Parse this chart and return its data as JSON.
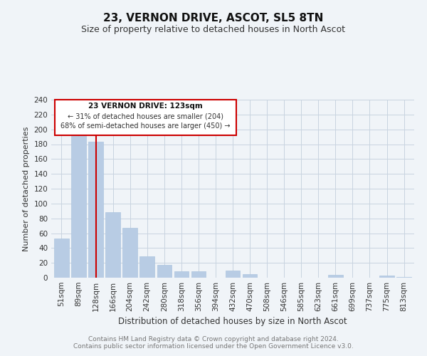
{
  "title": "23, VERNON DRIVE, ASCOT, SL5 8TN",
  "subtitle": "Size of property relative to detached houses in North Ascot",
  "xlabel": "Distribution of detached houses by size in North Ascot",
  "ylabel": "Number of detached properties",
  "footer_line1": "Contains HM Land Registry data © Crown copyright and database right 2024.",
  "footer_line2": "Contains public sector information licensed under the Open Government Licence v3.0.",
  "bar_labels": [
    "51sqm",
    "89sqm",
    "128sqm",
    "166sqm",
    "204sqm",
    "242sqm",
    "280sqm",
    "318sqm",
    "356sqm",
    "394sqm",
    "432sqm",
    "470sqm",
    "508sqm",
    "546sqm",
    "585sqm",
    "623sqm",
    "661sqm",
    "699sqm",
    "737sqm",
    "775sqm",
    "813sqm"
  ],
  "bar_values": [
    53,
    191,
    183,
    88,
    67,
    29,
    17,
    9,
    9,
    0,
    10,
    5,
    0,
    0,
    0,
    0,
    4,
    0,
    0,
    3,
    1
  ],
  "bar_color": "#b8cce4",
  "bar_edge_color": "#aec6df",
  "highlight_index": 2,
  "highlight_line_color": "#cc0000",
  "ylim": [
    0,
    240
  ],
  "yticks": [
    0,
    20,
    40,
    60,
    80,
    100,
    120,
    140,
    160,
    180,
    200,
    220,
    240
  ],
  "annotation_title": "23 VERNON DRIVE: 123sqm",
  "annotation_line1": "← 31% of detached houses are smaller (204)",
  "annotation_line2": "68% of semi-detached houses are larger (450) →",
  "bg_color": "#f0f4f8",
  "grid_color": "#c8d4e0",
  "title_fontsize": 11,
  "subtitle_fontsize": 9,
  "axis_label_fontsize": 8,
  "tick_fontsize": 7.5,
  "footer_fontsize": 6.5
}
